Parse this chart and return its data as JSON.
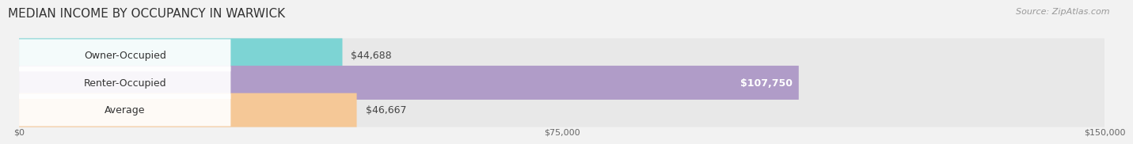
{
  "title": "MEDIAN INCOME BY OCCUPANCY IN WARWICK",
  "source": "Source: ZipAtlas.com",
  "categories": [
    "Owner-Occupied",
    "Renter-Occupied",
    "Average"
  ],
  "values": [
    44688,
    107750,
    46667
  ],
  "bar_colors": [
    "#7dd4d4",
    "#b09cc8",
    "#f5c897"
  ],
  "bar_bg_color": "#e8e8e8",
  "value_labels": [
    "$44,688",
    "$107,750",
    "$46,667"
  ],
  "label_inside": [
    false,
    true,
    false
  ],
  "xlim": [
    0,
    150000
  ],
  "xticks": [
    0,
    75000,
    150000
  ],
  "xtick_labels": [
    "$0",
    "$75,000",
    "$150,000"
  ],
  "title_fontsize": 11,
  "source_fontsize": 8,
  "bar_label_fontsize": 9,
  "value_fontsize": 9,
  "fig_width": 14.06,
  "fig_height": 1.96,
  "bg_color": "#f2f2f2",
  "bar_height": 0.62,
  "white_label_bg": "#ffffff"
}
